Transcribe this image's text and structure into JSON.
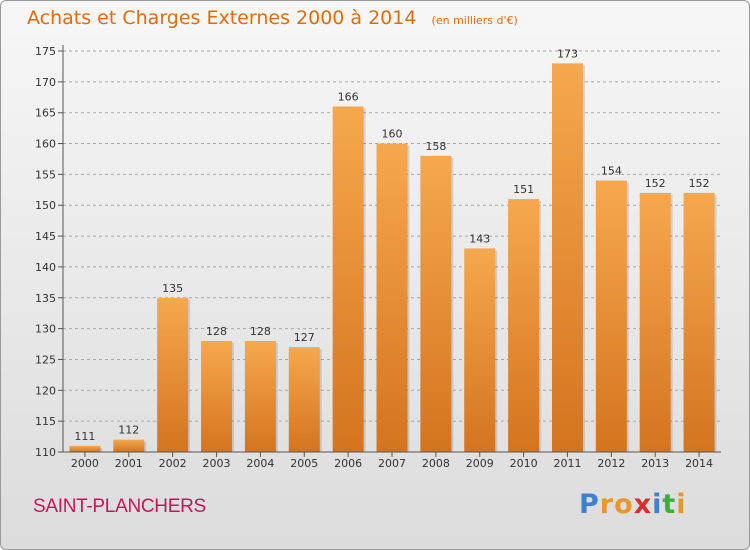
{
  "title": "Achats et Charges Externes 2000 à 2014",
  "unit": "(en milliers d'€)",
  "commune": "SAINT-PLANCHERS",
  "logo": {
    "letters": [
      "P",
      "r",
      "o",
      "x",
      "i",
      "t",
      "i"
    ],
    "colors": [
      "#3f7fd0",
      "#e8962c",
      "#e8962c",
      "#d62e2e",
      "#3f7fd0",
      "#3cae3c",
      "#e8962c"
    ]
  },
  "colors": {
    "title": "#e36c0a",
    "bar_light": "#f6a84e",
    "bar_dark": "#d4741f",
    "commune": "#c2185b"
  },
  "chart_data": {
    "type": "bar",
    "categories": [
      "2000",
      "2001",
      "2002",
      "2003",
      "2004",
      "2005",
      "2006",
      "2007",
      "2008",
      "2009",
      "2010",
      "2011",
      "2012",
      "2013",
      "2014"
    ],
    "values": [
      111,
      112,
      135,
      128,
      128,
      127,
      166,
      160,
      158,
      143,
      151,
      173,
      154,
      152,
      152
    ],
    "ylim": [
      110,
      175
    ],
    "yticks": [
      110,
      115,
      120,
      125,
      130,
      135,
      140,
      145,
      150,
      155,
      160,
      165,
      170,
      175
    ],
    "grid": "horizontal-dashed"
  }
}
